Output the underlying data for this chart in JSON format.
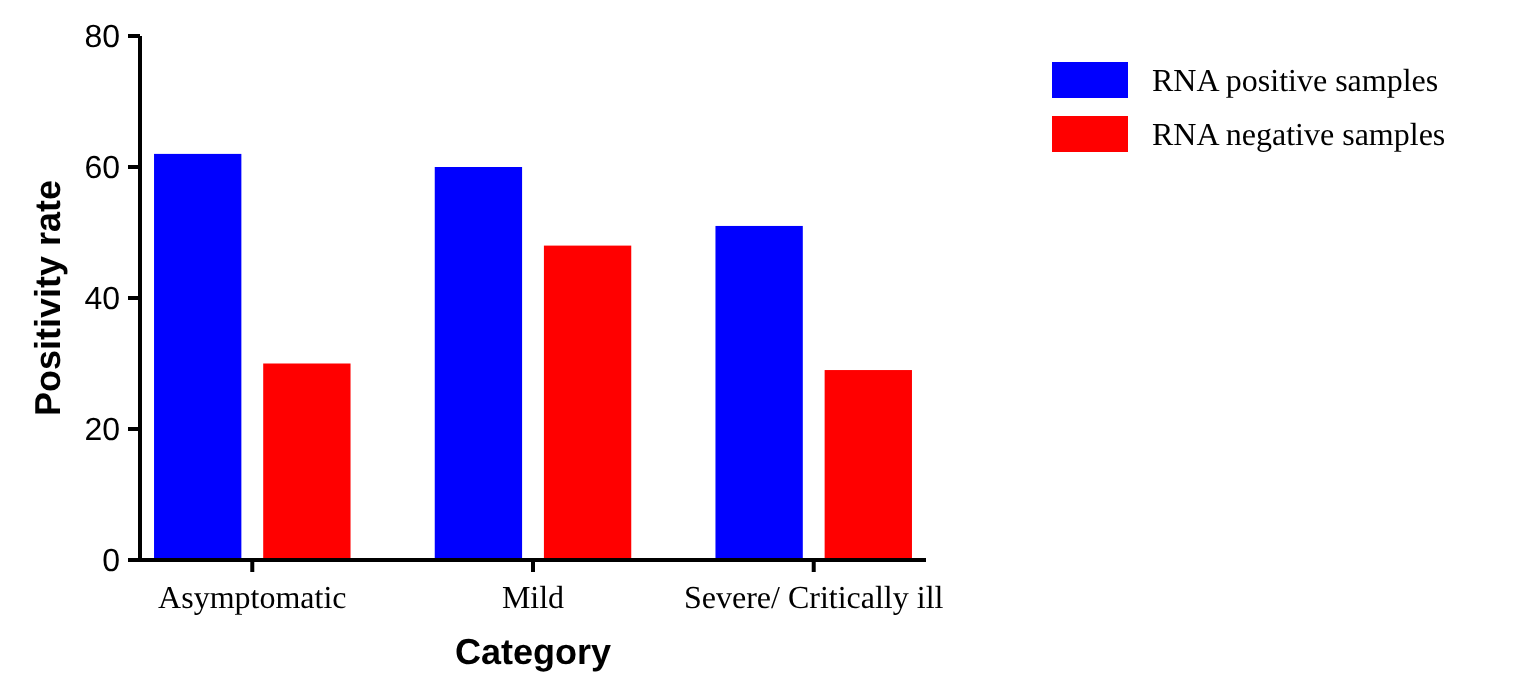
{
  "chart_data": {
    "type": "bar",
    "xlabel": "Category",
    "ylabel": "Positivity rate",
    "categories": [
      "Asymptomatic",
      "Mild",
      "Severe/ Critically ill"
    ],
    "series": [
      {
        "name": "RNA positive samples",
        "color": "#0000ff",
        "values": [
          62,
          60,
          51
        ]
      },
      {
        "name": "RNA negative samples",
        "color": "#ff0000",
        "values": [
          30,
          48,
          29
        ]
      }
    ],
    "ylim": [
      0,
      80
    ],
    "yticks": [
      0,
      20,
      40,
      60,
      80
    ],
    "grid": false,
    "legend": "top right"
  }
}
